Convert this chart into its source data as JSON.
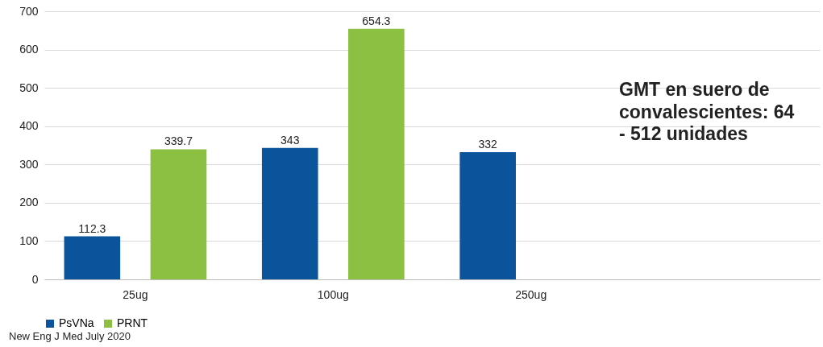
{
  "chart_data": {
    "type": "bar",
    "categories": [
      "25ug",
      "100ug",
      "250ug",
      null
    ],
    "series": [
      {
        "name": "PsVNa",
        "color": "#0b539b",
        "values": [
          112.3,
          343,
          332,
          null
        ]
      },
      {
        "name": "PRNT",
        "color": "#8cc043",
        "values": [
          339.7,
          654.3,
          null,
          null
        ]
      }
    ],
    "ylim": [
      0,
      700
    ],
    "yticks": [
      0,
      100,
      200,
      300,
      400,
      500,
      600,
      700
    ],
    "grid": "y",
    "legend": "bottom",
    "data_labels": true,
    "annotations": [
      {
        "text": "GMT en suero de convalescientes: 64 - 512 unidades"
      },
      "New Eng J Med July 2020"
    ]
  }
}
